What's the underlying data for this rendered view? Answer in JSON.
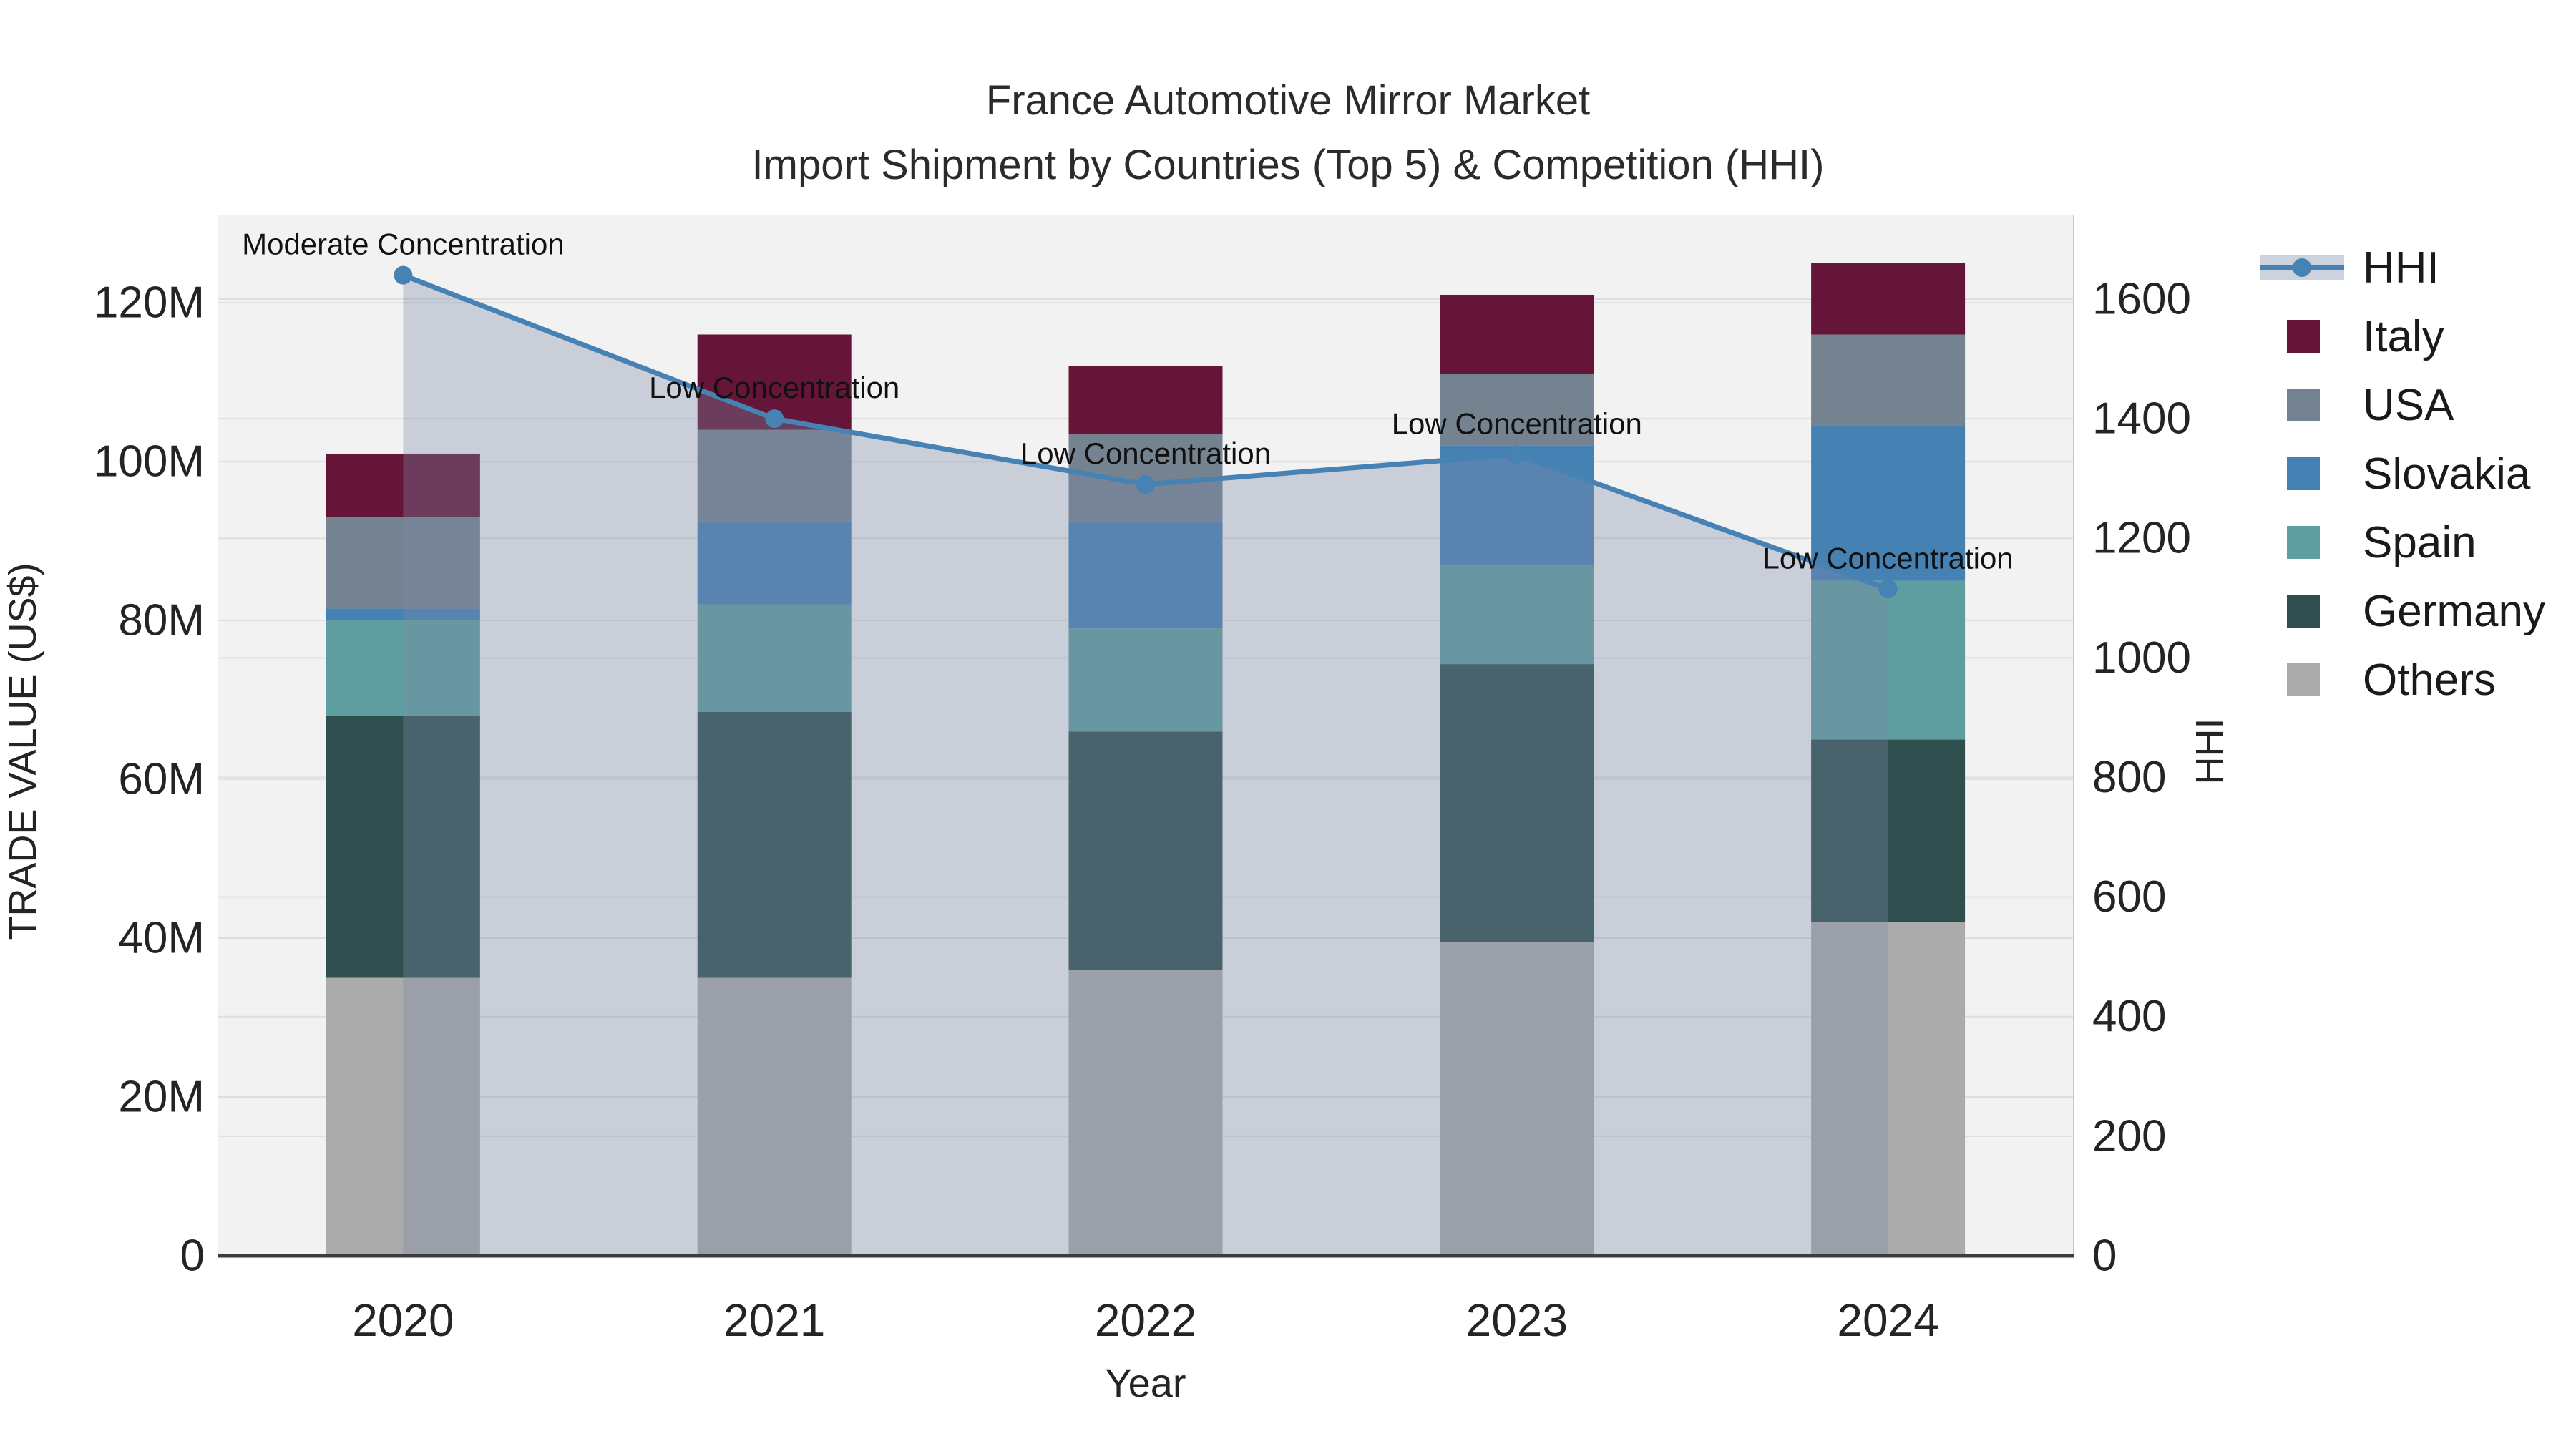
{
  "header": {
    "title": "France Automotive Mirror Market",
    "subtitle": "Import Shipment by Countries (Top 5) & Competition (HHI)"
  },
  "colors": {
    "plot_background": "#f2f2f3",
    "gridline": "#dedee1",
    "axis_line": "#3d3d3d",
    "right_spine": "#c9c9cd",
    "tick_text": "#242424",
    "annotation_text": "#111111",
    "hhi_line": "#4682b4",
    "hhi_area_fill": "rgba(122,138,166,0.34)"
  },
  "legend": {
    "items": [
      {
        "label": "HHI",
        "type": "line",
        "color": "#4682b4"
      },
      {
        "label": "Italy",
        "type": "swatch",
        "color": "#651537"
      },
      {
        "label": "USA",
        "type": "swatch",
        "color": "#75828f"
      },
      {
        "label": "Slovakia",
        "type": "swatch",
        "color": "#4681b4"
      },
      {
        "label": "Spain",
        "type": "swatch",
        "color": "#5f9ea0"
      },
      {
        "label": "Germany",
        "type": "swatch",
        "color": "#2f4f4f"
      },
      {
        "label": "Others",
        "type": "swatch",
        "color": "#ababab"
      }
    ]
  },
  "chart_data": {
    "type": "bar",
    "subtype": "stacked-bar-with-line",
    "title": "France Automotive Mirror Market",
    "subtitle": "Import Shipment by Countries (Top 5) & Competition (HHI)",
    "categories": [
      "2020",
      "2021",
      "2022",
      "2023",
      "2024"
    ],
    "xlabel": "Year",
    "ylabel_left": "TRADE VALUE (US$)",
    "ylabel_right": "HHI",
    "y_left_ticks": [
      "0",
      "20M",
      "40M",
      "60M",
      "80M",
      "100M",
      "120M"
    ],
    "y_left_tick_values": [
      0,
      20,
      40,
      60,
      80,
      100,
      120
    ],
    "y_left_max_musd": 131,
    "y_right_ticks": [
      "0",
      "200",
      "400",
      "600",
      "800",
      "1000",
      "1200",
      "1400",
      "1600"
    ],
    "y_right_tick_values": [
      0,
      200,
      400,
      600,
      800,
      1000,
      1200,
      1400,
      1600
    ],
    "y_right_max": 1740,
    "grid": true,
    "legend_position": "right",
    "series": [
      {
        "name": "Others",
        "color": "#ababab",
        "values_musd": [
          35,
          35,
          36,
          39.5,
          42
        ]
      },
      {
        "name": "Germany",
        "color": "#2f4f4f",
        "values_musd": [
          33,
          33.5,
          30,
          35,
          23
        ]
      },
      {
        "name": "Spain",
        "color": "#5f9ea0",
        "values_musd": [
          12,
          13.5,
          13,
          12.5,
          20
        ]
      },
      {
        "name": "Slovakia",
        "color": "#4681b4",
        "values_musd": [
          1.5,
          10.5,
          13.5,
          15,
          19.5
        ]
      },
      {
        "name": "USA",
        "color": "#75828f",
        "values_musd": [
          11.5,
          11.5,
          11,
          9,
          11.5
        ]
      },
      {
        "name": "Italy",
        "color": "#651537",
        "values_musd": [
          8,
          12,
          8.5,
          10,
          9
        ]
      }
    ],
    "stack_totals_musd": [
      101,
      116,
      112,
      121,
      125
    ],
    "line_series": {
      "name": "HHI",
      "axis": "right",
      "color": "#4682b4",
      "area_fill": "rgba(122,138,166,0.34)",
      "values": [
        1640,
        1400,
        1290,
        1340,
        1115
      ]
    },
    "annotations": [
      {
        "category": "2020",
        "text": "Moderate Concentration"
      },
      {
        "category": "2021",
        "text": "Low Concentration"
      },
      {
        "category": "2022",
        "text": "Low Concentration"
      },
      {
        "category": "2023",
        "text": "Low Concentration"
      },
      {
        "category": "2024",
        "text": "Low Concentration"
      }
    ]
  }
}
